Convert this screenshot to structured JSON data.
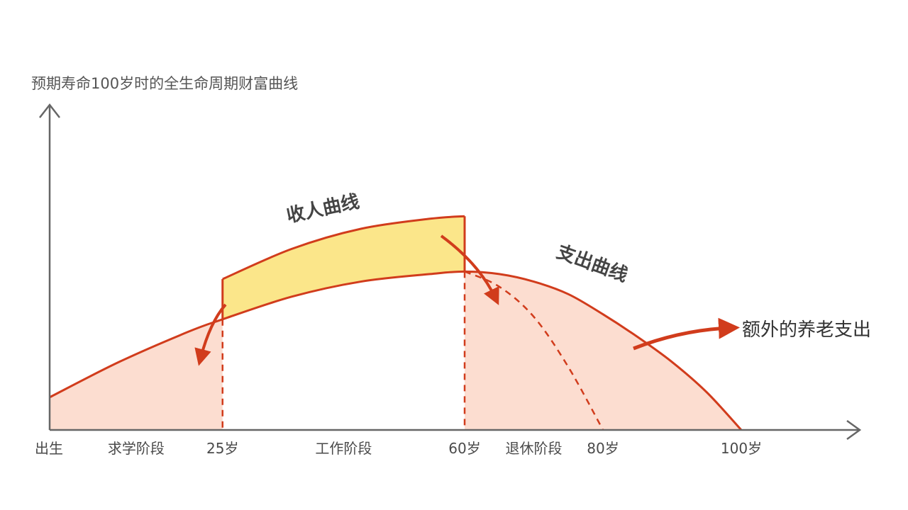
{
  "chart_data": {
    "type": "area",
    "title": "预期寿命100岁时的全生命周期财富曲线",
    "xlabel": "",
    "ylabel": "",
    "xlim": [
      0,
      110
    ],
    "ylim": [
      0,
      100
    ],
    "grid": false,
    "x_ticks": [
      {
        "x": 0,
        "label": "出生"
      },
      {
        "x": 25,
        "label": "25岁"
      },
      {
        "x": 60,
        "label": "60岁"
      },
      {
        "x": 80,
        "label": "80岁"
      },
      {
        "x": 100,
        "label": "100岁"
      }
    ],
    "stage_labels": [
      {
        "x": 12.5,
        "label": "求学阶段"
      },
      {
        "x": 42.5,
        "label": "工作阶段"
      },
      {
        "x": 70,
        "label": "退休阶段"
      }
    ],
    "series": [
      {
        "name": "收人曲线",
        "x": [
          25,
          35,
          45,
          55,
          60
        ],
        "y": [
          60,
          72,
          80,
          84,
          85
        ],
        "color": "#d13c1c",
        "fill": "#fbe68a"
      },
      {
        "name": "支出曲线",
        "x": [
          0,
          10,
          20,
          25,
          35,
          45,
          55,
          60,
          65,
          70,
          75,
          80,
          85,
          90,
          95,
          100
        ],
        "y": [
          13,
          27,
          39,
          44,
          53,
          59,
          62,
          63,
          62,
          59,
          54,
          46,
          37,
          27,
          15,
          0
        ],
        "color": "#d13c1c",
        "fill": "#fcddd0"
      },
      {
        "name": "",
        "style": "dashed",
        "x": [
          60,
          65,
          70,
          75,
          80
        ],
        "y": [
          63,
          57,
          45,
          25,
          0
        ],
        "color": "#d13c1c"
      }
    ],
    "annotations": [
      {
        "text": "额外的养老支出"
      }
    ]
  },
  "colors": {
    "axis": "#666666",
    "curve": "#d13c1c",
    "income_fill": "#fbe68a",
    "expense_fill": "#fcddd0"
  }
}
